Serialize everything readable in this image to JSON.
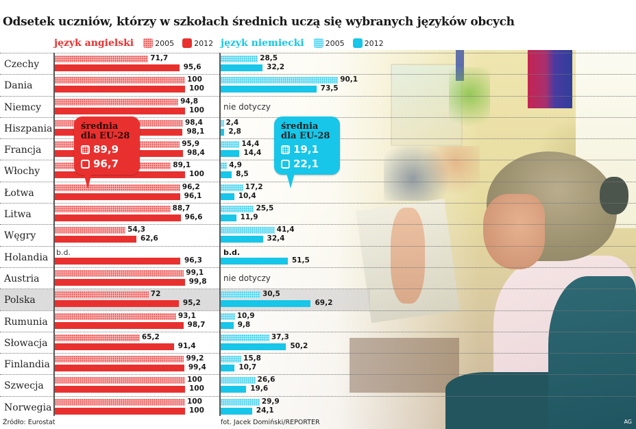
{
  "title": "Odsetek uczniów, którzy w szkołach średnich uczą się wybranych języków obcych",
  "legend": {
    "english": {
      "label": "język angielski",
      "y2005": "2005",
      "y2012": "2012",
      "color": "#e8312f"
    },
    "german": {
      "label": "język niemiecki",
      "y2005": "2005",
      "y2012": "2012",
      "color": "#17c6e8"
    }
  },
  "callouts": {
    "english": {
      "line1": "średnia",
      "line2": "dla EU-28",
      "v2005": "89,9",
      "v2012": "96,7"
    },
    "german": {
      "line1": "średnia",
      "line2": "dla EU-28",
      "v2005": "19,1",
      "v2012": "22,1"
    }
  },
  "footer": {
    "source": "Źródło: Eurostat",
    "credit": "fot. Jacek Domiński/REPORTER",
    "initials": "AG"
  },
  "rows": [
    {
      "country": "Czechy",
      "en2005": "71,7",
      "en2012": "95,6",
      "de2005": "28,5",
      "de2012": "32,2"
    },
    {
      "country": "Dania",
      "en2005": "100",
      "en2012": "100",
      "de2005": "90,1",
      "de2012": "73,5"
    },
    {
      "country": "Niemcy",
      "en2005": "94,8",
      "en2012": "100",
      "de_note": "nie dotyczy"
    },
    {
      "country": "Hiszpania",
      "en2005": "98,4",
      "en2012": "98,1",
      "de2005": "2,4",
      "de2012": "2,8"
    },
    {
      "country": "Francja",
      "en2005": "95,9",
      "en2012": "98,4",
      "de2005": "14,4",
      "de2012": "14,4"
    },
    {
      "country": "Włochy",
      "en2005": "89,1",
      "en2012": "100",
      "de2005": "4,9",
      "de2012": "8,5"
    },
    {
      "country": "Łotwa",
      "en2005": "96,2",
      "en2012": "96,1",
      "de2005": "17,2",
      "de2012": "10,4"
    },
    {
      "country": "Litwa",
      "en2005": "88,7",
      "en2012": "96,6",
      "de2005": "25,5",
      "de2012": "11,9"
    },
    {
      "country": "Węgry",
      "en2005": "54,3",
      "en2012": "62,6",
      "de2005": "41,4",
      "de2012": "32,4"
    },
    {
      "country": "Holandia",
      "en2005_note": "b.d.",
      "en2012": "96,3",
      "de2005_note": "b.d.",
      "de2012": "51,5"
    },
    {
      "country": "Austria",
      "en2005": "99,1",
      "en2012": "99,8",
      "de_note": "nie dotyczy"
    },
    {
      "country": "Polska",
      "en2005": "72",
      "en2012": "95,2",
      "de2005": "30,5",
      "de2012": "69,2",
      "highlight": true
    },
    {
      "country": "Rumunia",
      "en2005": "93,1",
      "en2012": "98,7",
      "de2005": "10,9",
      "de2012": "9,8"
    },
    {
      "country": "Słowacja",
      "en2005": "65,2",
      "en2012": "91,4",
      "de2005": "37,3",
      "de2012": "50,2"
    },
    {
      "country": "Finlandia",
      "en2005": "99,2",
      "en2012": "99,4",
      "de2005": "15,8",
      "de2012": "10,7"
    },
    {
      "country": "Szwecja",
      "en2005": "100",
      "en2012": "100",
      "de2005": "26,6",
      "de2012": "19,6"
    },
    {
      "country": "Norwegia",
      "en2005": "100",
      "en2012": "100",
      "de2005": "29,9",
      "de2012": "24,1"
    }
  ],
  "chart_data": {
    "type": "bar",
    "title": "Odsetek uczniów, którzy w szkołach średnich uczą się wybranych języków obcych",
    "orientation": "horizontal",
    "xlabel": "",
    "ylabel": "",
    "xlim": [
      0,
      100
    ],
    "unit": "%",
    "categories": [
      "Czechy",
      "Dania",
      "Niemcy",
      "Hiszpania",
      "Francja",
      "Włochy",
      "Łotwa",
      "Litwa",
      "Węgry",
      "Holandia",
      "Austria",
      "Polska",
      "Rumunia",
      "Słowacja",
      "Finlandia",
      "Szwecja",
      "Norwegia"
    ],
    "series": [
      {
        "name": "język angielski 2005",
        "values": [
          71.7,
          100,
          94.8,
          98.4,
          95.9,
          89.1,
          96.2,
          88.7,
          54.3,
          null,
          99.1,
          72,
          93.1,
          65.2,
          99.2,
          100,
          100
        ]
      },
      {
        "name": "język angielski 2012",
        "values": [
          95.6,
          100,
          100,
          98.1,
          98.4,
          100,
          96.1,
          96.6,
          62.6,
          96.3,
          99.8,
          95.2,
          98.7,
          91.4,
          99.4,
          100,
          100
        ]
      },
      {
        "name": "język niemiecki 2005",
        "values": [
          28.5,
          90.1,
          null,
          2.4,
          14.4,
          4.9,
          17.2,
          25.5,
          41.4,
          null,
          null,
          30.5,
          10.9,
          37.3,
          15.8,
          26.6,
          29.9
        ]
      },
      {
        "name": "język niemiecki 2012",
        "values": [
          32.2,
          73.5,
          null,
          2.8,
          14.4,
          8.5,
          10.4,
          11.9,
          32.4,
          51.5,
          null,
          69.2,
          9.8,
          50.2,
          10.7,
          19.6,
          24.1
        ]
      }
    ],
    "annotations": [
      "średnia dla EU-28 (angielski): 2005 = 89,9; 2012 = 96,7",
      "średnia dla EU-28 (niemiecki): 2005 = 19,1; 2012 = 22,1",
      "b.d. = brak danych",
      "nie dotyczy (Niemcy, Austria – język niemiecki)"
    ],
    "legend_position": "top",
    "grid": false,
    "highlighted_category": "Polska",
    "source": "Źródło: Eurostat"
  }
}
